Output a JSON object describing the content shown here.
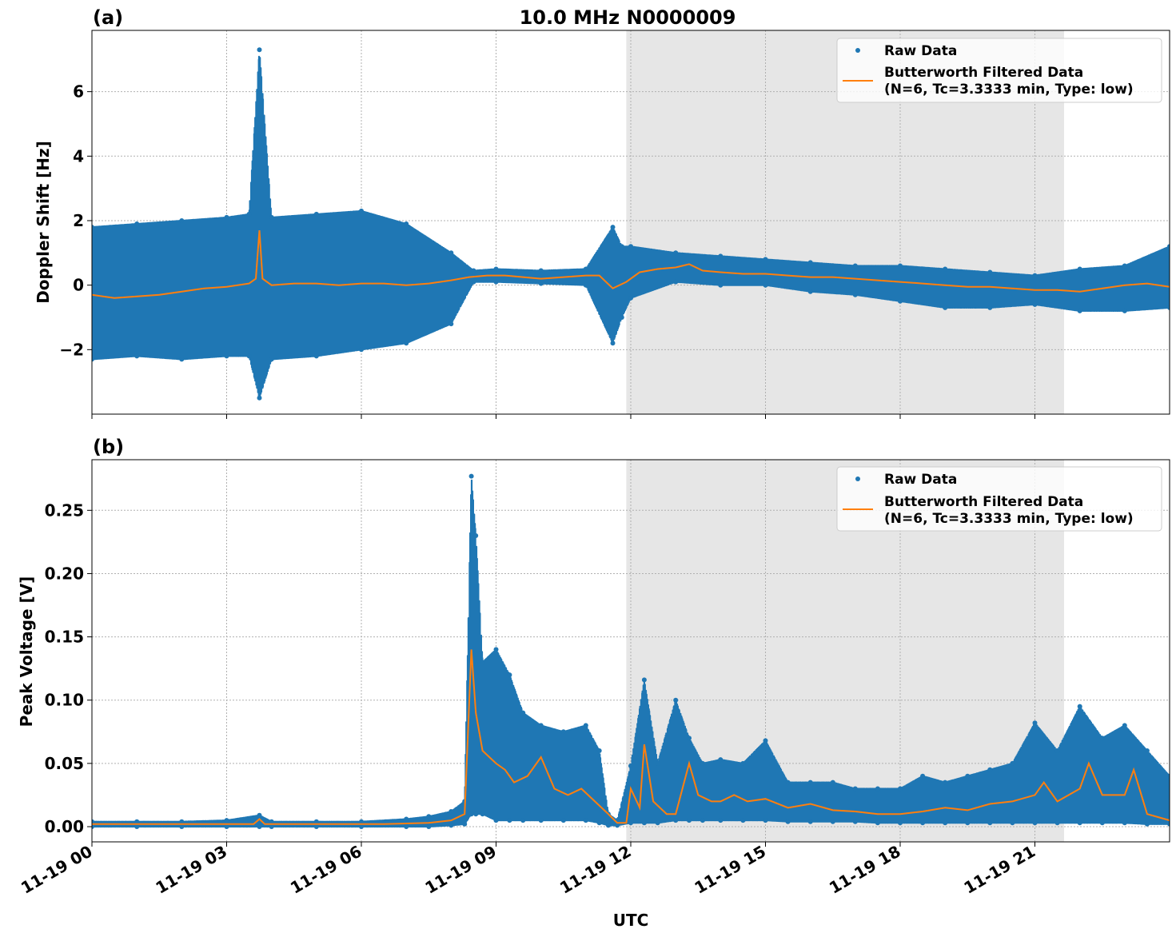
{
  "figure": {
    "title": "10.0 MHz N0000009",
    "xlabel": "UTC",
    "x_ticks": [
      "11-19 00",
      "11-19 03",
      "11-19 06",
      "11-19 09",
      "11-19 12",
      "11-19 15",
      "11-19 18",
      "11-19 21"
    ],
    "shaded_region_hours": [
      11.9,
      21.65
    ],
    "x_range_hours": [
      0,
      24
    ],
    "colors": {
      "raw": "#1f77b4",
      "filtered": "#ff7f0e",
      "shade": "#e6e6e6",
      "grid": "#b0b0b0"
    }
  },
  "legend": {
    "raw_label": "Raw Data",
    "filtered_label_line1": "Butterworth Filtered Data",
    "filtered_label_line2": "(N=6, Tc=3.3333 min, Type: low)"
  },
  "chart_data": [
    {
      "type": "scatter",
      "panel_label": "(a)",
      "title": "10.0 MHz N0000009",
      "xlabel": "",
      "ylabel": "Doppler Shift [Hz]",
      "ylim": [
        -4,
        7.9
      ],
      "y_ticks": [
        "−2",
        "0",
        "2",
        "4",
        "6"
      ],
      "grid": true,
      "legend_position": "top-right",
      "series": [
        {
          "name": "Raw Data",
          "style": "points",
          "x": [
            0.0,
            1.0,
            2.0,
            3.0,
            3.5,
            3.73,
            4.0,
            5.0,
            6.0,
            7.0,
            8.0,
            8.5,
            9.0,
            10.0,
            11.0,
            11.6,
            11.8,
            12.0,
            13.0,
            14.0,
            15.0,
            16.0,
            17.0,
            18.0,
            19.0,
            20.0,
            21.0,
            22.0,
            23.0,
            24.0
          ],
          "y_low": [
            -2.3,
            -2.2,
            -2.3,
            -2.2,
            -2.2,
            -3.5,
            -2.3,
            -2.2,
            -2.0,
            -1.8,
            -1.2,
            0.1,
            0.1,
            0.05,
            0.0,
            -1.8,
            -1.0,
            -0.4,
            0.1,
            0.0,
            0.0,
            -0.2,
            -0.3,
            -0.5,
            -0.7,
            -0.7,
            -0.6,
            -0.8,
            -0.8,
            -0.7
          ],
          "y_high": [
            1.8,
            1.9,
            2.0,
            2.1,
            2.2,
            7.3,
            2.1,
            2.2,
            2.3,
            1.9,
            1.0,
            0.45,
            0.5,
            0.45,
            0.5,
            1.8,
            1.2,
            1.2,
            1.0,
            0.9,
            0.8,
            0.7,
            0.6,
            0.6,
            0.5,
            0.4,
            0.3,
            0.5,
            0.6,
            1.2
          ]
        },
        {
          "name": "Butterworth Filtered Data",
          "style": "line",
          "x": [
            0.0,
            0.5,
            1.0,
            1.5,
            2.0,
            2.5,
            3.0,
            3.5,
            3.65,
            3.73,
            3.8,
            4.0,
            4.5,
            5.0,
            5.5,
            6.0,
            6.5,
            7.0,
            7.5,
            8.0,
            8.4,
            8.8,
            9.2,
            9.6,
            10.0,
            10.5,
            11.0,
            11.3,
            11.6,
            11.9,
            12.2,
            12.6,
            13.0,
            13.3,
            13.6,
            14.0,
            14.5,
            15.0,
            15.5,
            16.0,
            16.5,
            17.0,
            17.5,
            18.0,
            18.5,
            19.0,
            19.5,
            20.0,
            20.5,
            21.0,
            21.5,
            22.0,
            22.5,
            23.0,
            23.5,
            24.0
          ],
          "y": [
            -0.3,
            -0.4,
            -0.35,
            -0.3,
            -0.2,
            -0.1,
            -0.05,
            0.05,
            0.2,
            1.7,
            0.2,
            0.0,
            0.05,
            0.05,
            0.0,
            0.05,
            0.05,
            0.0,
            0.05,
            0.15,
            0.25,
            0.3,
            0.3,
            0.25,
            0.2,
            0.25,
            0.3,
            0.3,
            -0.1,
            0.1,
            0.4,
            0.5,
            0.55,
            0.65,
            0.45,
            0.4,
            0.35,
            0.35,
            0.3,
            0.25,
            0.25,
            0.2,
            0.15,
            0.1,
            0.05,
            0.0,
            -0.05,
            -0.05,
            -0.1,
            -0.15,
            -0.15,
            -0.2,
            -0.1,
            0.0,
            0.05,
            -0.05
          ]
        }
      ]
    },
    {
      "type": "scatter",
      "panel_label": "(b)",
      "title": "",
      "xlabel": "UTC",
      "ylabel": "Peak Voltage [V]",
      "ylim": [
        -0.012,
        0.29
      ],
      "y_ticks": [
        "0.00",
        "0.05",
        "0.10",
        "0.15",
        "0.20",
        "0.25"
      ],
      "grid": true,
      "legend_position": "top-right",
      "series": [
        {
          "name": "Raw Data",
          "style": "points",
          "x": [
            0.0,
            1.0,
            2.0,
            3.0,
            3.73,
            4.0,
            5.0,
            6.0,
            7.0,
            7.5,
            8.0,
            8.3,
            8.45,
            8.55,
            8.7,
            9.0,
            9.3,
            9.6,
            10.0,
            10.5,
            11.0,
            11.3,
            11.5,
            11.7,
            12.0,
            12.3,
            12.6,
            13.0,
            13.3,
            13.6,
            14.0,
            14.5,
            15.0,
            15.5,
            16.0,
            16.5,
            17.0,
            17.5,
            18.0,
            18.5,
            19.0,
            19.5,
            20.0,
            20.5,
            21.0,
            21.5,
            22.0,
            22.5,
            23.0,
            23.5,
            24.0
          ],
          "y_low": [
            0.0,
            0.0,
            0.0,
            0.0,
            0.0,
            0.0,
            0.0,
            0.0,
            0.0,
            0.0,
            0.001,
            0.002,
            0.01,
            0.01,
            0.01,
            0.005,
            0.005,
            0.005,
            0.005,
            0.005,
            0.005,
            0.003,
            0.001,
            0.001,
            0.003,
            0.003,
            0.003,
            0.005,
            0.005,
            0.005,
            0.005,
            0.005,
            0.005,
            0.004,
            0.004,
            0.004,
            0.004,
            0.003,
            0.003,
            0.003,
            0.003,
            0.003,
            0.003,
            0.003,
            0.003,
            0.003,
            0.003,
            0.003,
            0.003,
            0.002,
            0.002
          ],
          "y_high": [
            0.004,
            0.004,
            0.004,
            0.005,
            0.009,
            0.004,
            0.004,
            0.004,
            0.006,
            0.008,
            0.012,
            0.02,
            0.277,
            0.23,
            0.13,
            0.14,
            0.12,
            0.09,
            0.08,
            0.075,
            0.08,
            0.06,
            0.01,
            0.005,
            0.048,
            0.116,
            0.05,
            0.1,
            0.07,
            0.05,
            0.053,
            0.05,
            0.068,
            0.035,
            0.035,
            0.035,
            0.03,
            0.03,
            0.03,
            0.04,
            0.035,
            0.04,
            0.045,
            0.05,
            0.082,
            0.06,
            0.095,
            0.07,
            0.08,
            0.06,
            0.04
          ]
        },
        {
          "name": "Butterworth Filtered Data",
          "style": "line",
          "x": [
            0.0,
            1.0,
            2.0,
            3.0,
            3.6,
            3.73,
            3.85,
            4.5,
            5.5,
            6.5,
            7.5,
            8.0,
            8.3,
            8.45,
            8.55,
            8.7,
            9.0,
            9.2,
            9.4,
            9.7,
            10.0,
            10.3,
            10.6,
            10.9,
            11.2,
            11.5,
            11.7,
            11.9,
            12.0,
            12.2,
            12.3,
            12.5,
            12.8,
            13.0,
            13.3,
            13.5,
            13.8,
            14.0,
            14.3,
            14.6,
            15.0,
            15.5,
            16.0,
            16.5,
            17.0,
            17.5,
            18.0,
            18.5,
            19.0,
            19.5,
            20.0,
            20.5,
            21.0,
            21.2,
            21.5,
            22.0,
            22.2,
            22.5,
            23.0,
            23.2,
            23.5,
            24.0
          ],
          "y": [
            0.002,
            0.002,
            0.002,
            0.002,
            0.002,
            0.006,
            0.002,
            0.002,
            0.002,
            0.002,
            0.003,
            0.005,
            0.01,
            0.14,
            0.09,
            0.06,
            0.05,
            0.045,
            0.035,
            0.04,
            0.055,
            0.03,
            0.025,
            0.03,
            0.02,
            0.01,
            0.003,
            0.003,
            0.03,
            0.015,
            0.065,
            0.02,
            0.01,
            0.01,
            0.05,
            0.025,
            0.02,
            0.02,
            0.025,
            0.02,
            0.022,
            0.015,
            0.018,
            0.013,
            0.012,
            0.01,
            0.01,
            0.012,
            0.015,
            0.013,
            0.018,
            0.02,
            0.025,
            0.035,
            0.02,
            0.03,
            0.05,
            0.025,
            0.025,
            0.045,
            0.01,
            0.005
          ]
        }
      ]
    }
  ]
}
